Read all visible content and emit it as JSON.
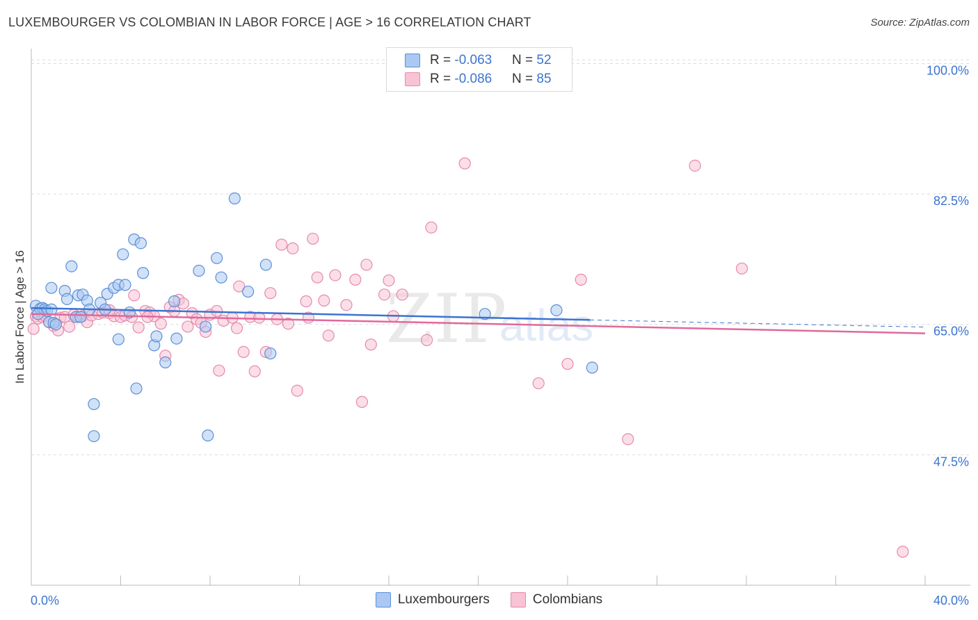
{
  "title": "LUXEMBOURGER VS COLOMBIAN IN LABOR FORCE | AGE > 16 CORRELATION CHART",
  "source": "Source: ZipAtlas.com",
  "legend": {
    "r_label": "R = ",
    "n_label": "N = ",
    "series": [
      {
        "r": "-0.063",
        "n": "52"
      },
      {
        "r": "-0.086",
        "n": "85"
      }
    ]
  },
  "bottom_legend": [
    "Luxembourgers",
    "Colombians"
  ],
  "colors": {
    "blue_fill": "#aac8f2",
    "blue_stroke": "#5b8fd6",
    "blue_line": "#3b73d0",
    "pink_fill": "#f7c3d5",
    "pink_stroke": "#e58aab",
    "pink_line": "#e0699a",
    "axis_text": "#3b73d0",
    "grid": "#dcdcdc"
  },
  "chart_data": {
    "type": "scatter",
    "title": "LUXEMBOURGER VS COLOMBIAN IN LABOR FORCE | AGE > 16 CORRELATION CHART",
    "xlabel": "",
    "ylabel": "In Labor Force | Age > 16",
    "xlim": [
      0,
      40
    ],
    "ylim": [
      30,
      102
    ],
    "x_tick_labels": [
      "0.0%",
      "40.0%"
    ],
    "y_ticks": [
      47.5,
      65.0,
      82.5,
      100.0
    ],
    "y_tick_labels": [
      "47.5%",
      "65.0%",
      "82.5%",
      "100.0%"
    ],
    "series": [
      {
        "name": "Luxembourgers",
        "r": -0.063,
        "n": 52,
        "trend": {
          "x": [
            0,
            25
          ],
          "y": [
            67.2,
            65.6
          ]
        },
        "points": [
          [
            0.2,
            67.5
          ],
          [
            0.4,
            67.1
          ],
          [
            0.5,
            67.2
          ],
          [
            0.6,
            67.0
          ],
          [
            0.7,
            66.8
          ],
          [
            0.8,
            65.3
          ],
          [
            0.9,
            67.0
          ],
          [
            0.9,
            69.9
          ],
          [
            1.0,
            65.2
          ],
          [
            1.1,
            65.0
          ],
          [
            1.5,
            69.5
          ],
          [
            1.6,
            68.4
          ],
          [
            1.8,
            72.8
          ],
          [
            2.0,
            66.0
          ],
          [
            2.1,
            68.9
          ],
          [
            2.3,
            69.0
          ],
          [
            2.5,
            68.2
          ],
          [
            2.6,
            67.0
          ],
          [
            2.8,
            54.3
          ],
          [
            2.8,
            50.0
          ],
          [
            3.1,
            67.9
          ],
          [
            3.3,
            67.0
          ],
          [
            3.4,
            69.1
          ],
          [
            3.7,
            69.9
          ],
          [
            3.9,
            63.0
          ],
          [
            3.9,
            70.3
          ],
          [
            4.1,
            74.4
          ],
          [
            4.2,
            70.3
          ],
          [
            4.4,
            66.6
          ],
          [
            4.6,
            76.4
          ],
          [
            4.7,
            56.4
          ],
          [
            4.9,
            75.9
          ],
          [
            5.0,
            71.9
          ],
          [
            5.5,
            62.2
          ],
          [
            5.6,
            63.4
          ],
          [
            6.0,
            59.9
          ],
          [
            6.4,
            68.1
          ],
          [
            6.5,
            63.1
          ],
          [
            7.5,
            72.2
          ],
          [
            7.8,
            64.7
          ],
          [
            7.9,
            50.1
          ],
          [
            8.3,
            73.9
          ],
          [
            8.5,
            71.3
          ],
          [
            9.1,
            81.9
          ],
          [
            9.7,
            69.4
          ],
          [
            10.5,
            73.0
          ],
          [
            10.7,
            61.1
          ],
          [
            20.3,
            66.4
          ],
          [
            23.5,
            66.9
          ],
          [
            25.1,
            59.2
          ],
          [
            2.2,
            66.0
          ],
          [
            0.3,
            66.4
          ]
        ]
      },
      {
        "name": "Colombians",
        "r": -0.086,
        "n": 85,
        "trend": {
          "x": [
            0,
            40
          ],
          "y": [
            66.4,
            63.8
          ]
        },
        "points": [
          [
            0.1,
            64.4
          ],
          [
            0.2,
            66.1
          ],
          [
            0.3,
            65.8
          ],
          [
            0.5,
            66.0
          ],
          [
            0.6,
            66.2
          ],
          [
            0.8,
            65.3
          ],
          [
            1.0,
            64.8
          ],
          [
            1.2,
            64.2
          ],
          [
            1.3,
            65.9
          ],
          [
            1.5,
            66.0
          ],
          [
            1.7,
            64.7
          ],
          [
            1.9,
            66.3
          ],
          [
            2.1,
            66.0
          ],
          [
            2.3,
            66.1
          ],
          [
            2.5,
            65.3
          ],
          [
            2.7,
            66.2
          ],
          [
            3.0,
            66.4
          ],
          [
            3.2,
            66.6
          ],
          [
            3.5,
            66.5
          ],
          [
            3.7,
            66.1
          ],
          [
            4.0,
            66.0
          ],
          [
            4.2,
            66.2
          ],
          [
            4.5,
            66.0
          ],
          [
            4.6,
            68.9
          ],
          [
            4.8,
            64.6
          ],
          [
            5.1,
            66.8
          ],
          [
            5.3,
            66.6
          ],
          [
            5.5,
            66.1
          ],
          [
            5.8,
            65.1
          ],
          [
            6.0,
            60.8
          ],
          [
            6.2,
            67.3
          ],
          [
            6.4,
            66.8
          ],
          [
            6.6,
            68.3
          ],
          [
            6.8,
            67.8
          ],
          [
            7.0,
            64.7
          ],
          [
            7.2,
            66.5
          ],
          [
            7.4,
            65.7
          ],
          [
            7.6,
            65.2
          ],
          [
            7.8,
            64.0
          ],
          [
            8.0,
            66.3
          ],
          [
            8.3,
            66.8
          ],
          [
            8.4,
            58.8
          ],
          [
            8.6,
            65.5
          ],
          [
            9.0,
            65.9
          ],
          [
            9.2,
            64.5
          ],
          [
            9.3,
            70.1
          ],
          [
            9.5,
            61.3
          ],
          [
            9.8,
            66.0
          ],
          [
            10.0,
            58.7
          ],
          [
            10.2,
            65.9
          ],
          [
            10.5,
            61.3
          ],
          [
            10.7,
            69.2
          ],
          [
            11.0,
            65.7
          ],
          [
            11.2,
            75.7
          ],
          [
            11.5,
            65.1
          ],
          [
            11.7,
            75.2
          ],
          [
            11.9,
            56.1
          ],
          [
            12.3,
            68.1
          ],
          [
            12.4,
            65.9
          ],
          [
            12.6,
            76.5
          ],
          [
            12.8,
            71.3
          ],
          [
            13.1,
            68.2
          ],
          [
            13.3,
            63.5
          ],
          [
            13.6,
            71.6
          ],
          [
            14.1,
            67.6
          ],
          [
            14.5,
            71.0
          ],
          [
            14.8,
            54.6
          ],
          [
            15.0,
            73.0
          ],
          [
            15.2,
            62.3
          ],
          [
            15.8,
            69.0
          ],
          [
            16.0,
            70.9
          ],
          [
            16.2,
            66.1
          ],
          [
            16.6,
            69.0
          ],
          [
            17.7,
            62.9
          ],
          [
            17.9,
            78.0
          ],
          [
            19.4,
            86.6
          ],
          [
            22.7,
            57.1
          ],
          [
            24.0,
            59.7
          ],
          [
            24.6,
            71.0
          ],
          [
            26.7,
            49.6
          ],
          [
            29.7,
            86.3
          ],
          [
            31.8,
            72.5
          ],
          [
            39.0,
            34.5
          ],
          [
            5.2,
            66.0
          ],
          [
            3.5,
            66.9
          ]
        ]
      }
    ]
  }
}
